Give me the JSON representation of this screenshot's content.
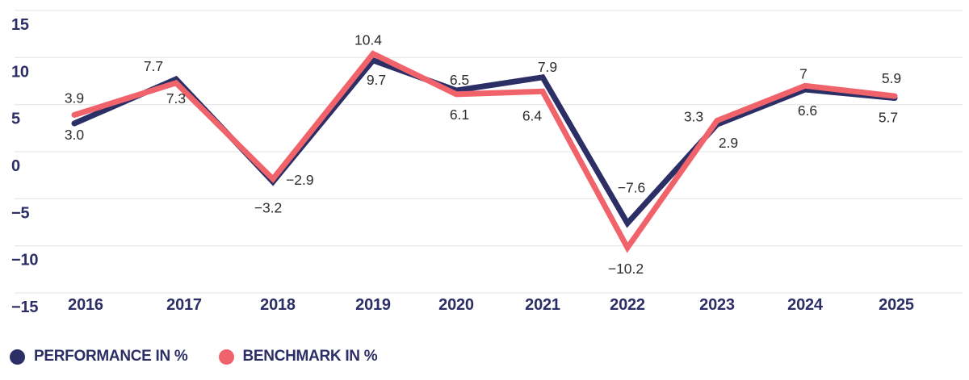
{
  "chart_data": {
    "type": "line",
    "title": "",
    "categories": [
      "2016",
      "2017",
      "2018",
      "2019",
      "2020",
      "2021",
      "2022",
      "2023",
      "2024",
      "2025"
    ],
    "series": [
      {
        "name": "PERFORMANCE IN %",
        "color": "#2c2f66",
        "values": [
          3.0,
          7.7,
          -3.2,
          9.7,
          6.5,
          7.9,
          -7.6,
          2.9,
          6.6,
          5.7
        ],
        "labels": [
          "3.0",
          "7.7",
          "−3.2",
          "9.7",
          "6.5",
          "7.9",
          "−7.6",
          "2.9",
          "6.6",
          "5.7"
        ]
      },
      {
        "name": "BENCHMARK IN %",
        "color": "#f1636b",
        "values": [
          3.9,
          7.3,
          -2.9,
          10.4,
          6.1,
          6.4,
          -10.2,
          3.3,
          7,
          5.9
        ],
        "labels": [
          "3.9",
          "7.3",
          "−2.9",
          "10.4",
          "6.1",
          "6.4",
          "−10.2",
          "3.3",
          "7",
          "5.9"
        ]
      }
    ],
    "ylim": [
      -15,
      15
    ],
    "yticks": [
      15,
      10,
      5,
      0,
      -5,
      -10,
      -15
    ],
    "ytick_labels": [
      "15",
      "10",
      "5",
      "0",
      "−5",
      "−10",
      "−15"
    ],
    "xlabel": "",
    "ylabel": "",
    "grid": true,
    "legend_position": "bottom-left",
    "colors": {
      "grid": "#e3e3e3",
      "axis_text": "#2c2f66",
      "data_label_text": "#2d2d2d",
      "background": "#ffffff"
    }
  },
  "legend": {
    "items": [
      {
        "label": "PERFORMANCE IN %",
        "color": "#2c2f66"
      },
      {
        "label": "BENCHMARK IN %",
        "color": "#f1636b"
      }
    ]
  }
}
